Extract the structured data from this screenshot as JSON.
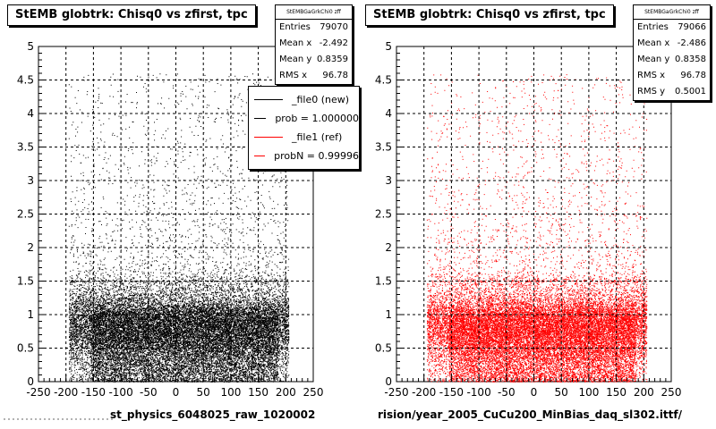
{
  "chart_data": [
    {
      "type": "scatter",
      "title": "StEMB globtrk: Chisq0 vs zfirst, tpc",
      "xlabel": "st_physics_6048025_raw_1020002",
      "ylabel": "",
      "xlim": [
        -250,
        250
      ],
      "ylim": [
        0,
        5
      ],
      "x_ticks": [
        "-250",
        "-200",
        "-150",
        "-100",
        "-50",
        "0",
        "50",
        "100",
        "150",
        "200",
        "250"
      ],
      "y_ticks": [
        "0",
        "0.5",
        "1",
        "1.5",
        "2",
        "2.5",
        "3",
        "3.5",
        "4",
        "4.5",
        "5"
      ],
      "grid": true,
      "marker_color": "#000000",
      "series": [
        {
          "name": "_file0 (new)"
        }
      ],
      "distribution": {
        "x_range": [
          -195,
          205
        ],
        "y_dense_range": [
          0,
          1.5
        ],
        "y_core_max": 1.0,
        "y_tail_max": 4.6,
        "y_mean": 0.8359,
        "x_mean": -2.492
      },
      "stats": {
        "header": "StEMBGaGrkChi0 zff",
        "rows": [
          {
            "label": "Entries",
            "value": "79070"
          },
          {
            "label": "Mean x",
            "value": "-2.492"
          },
          {
            "label": "Mean y",
            "value": "0.8359"
          },
          {
            "label": "RMS x",
            "value": "96.78"
          }
        ]
      },
      "legend": {
        "placement": "top-right",
        "items": [
          {
            "label": "_file0 (new)",
            "color": "#000000"
          },
          {
            "label": "prob = 1.000000",
            "color": "#000000"
          },
          {
            "label": "_file1 (ref)",
            "color": "#ff0000"
          },
          {
            "label": "probN = 0.99996",
            "color": "#ff0000"
          }
        ]
      }
    },
    {
      "type": "scatter",
      "title": "StEMB globtrk: Chisq0 vs zfirst, tpc",
      "xlabel": "rision/year_2005_CuCu200_MinBias_daq_sl302.ittf/",
      "ylabel": "",
      "xlim": [
        -250,
        250
      ],
      "ylim": [
        0,
        5
      ],
      "x_ticks": [
        "-250",
        "-200",
        "-150",
        "-100",
        "-50",
        "0",
        "50",
        "100",
        "150",
        "200",
        "250"
      ],
      "y_ticks": [
        "0",
        "0.5",
        "1",
        "1.5",
        "2",
        "2.5",
        "3",
        "3.5",
        "4",
        "4.5",
        "5"
      ],
      "grid": true,
      "marker_color": "#ff0000",
      "series": [
        {
          "name": "_file1 (ref)"
        }
      ],
      "distribution": {
        "x_range": [
          -195,
          205
        ],
        "y_dense_range": [
          0,
          1.5
        ],
        "y_core_max": 1.0,
        "y_tail_max": 4.6,
        "y_mean": 0.8358,
        "x_mean": -2.486
      },
      "stats": {
        "header": "StEMBGaGrkChi0 zff",
        "rows": [
          {
            "label": "Entries",
            "value": "79066"
          },
          {
            "label": "Mean x",
            "value": "-2.486"
          },
          {
            "label": "Mean y",
            "value": "0.8358"
          },
          {
            "label": "RMS x",
            "value": "96.78"
          },
          {
            "label": "RMS y",
            "value": "0.5001"
          }
        ]
      }
    }
  ]
}
